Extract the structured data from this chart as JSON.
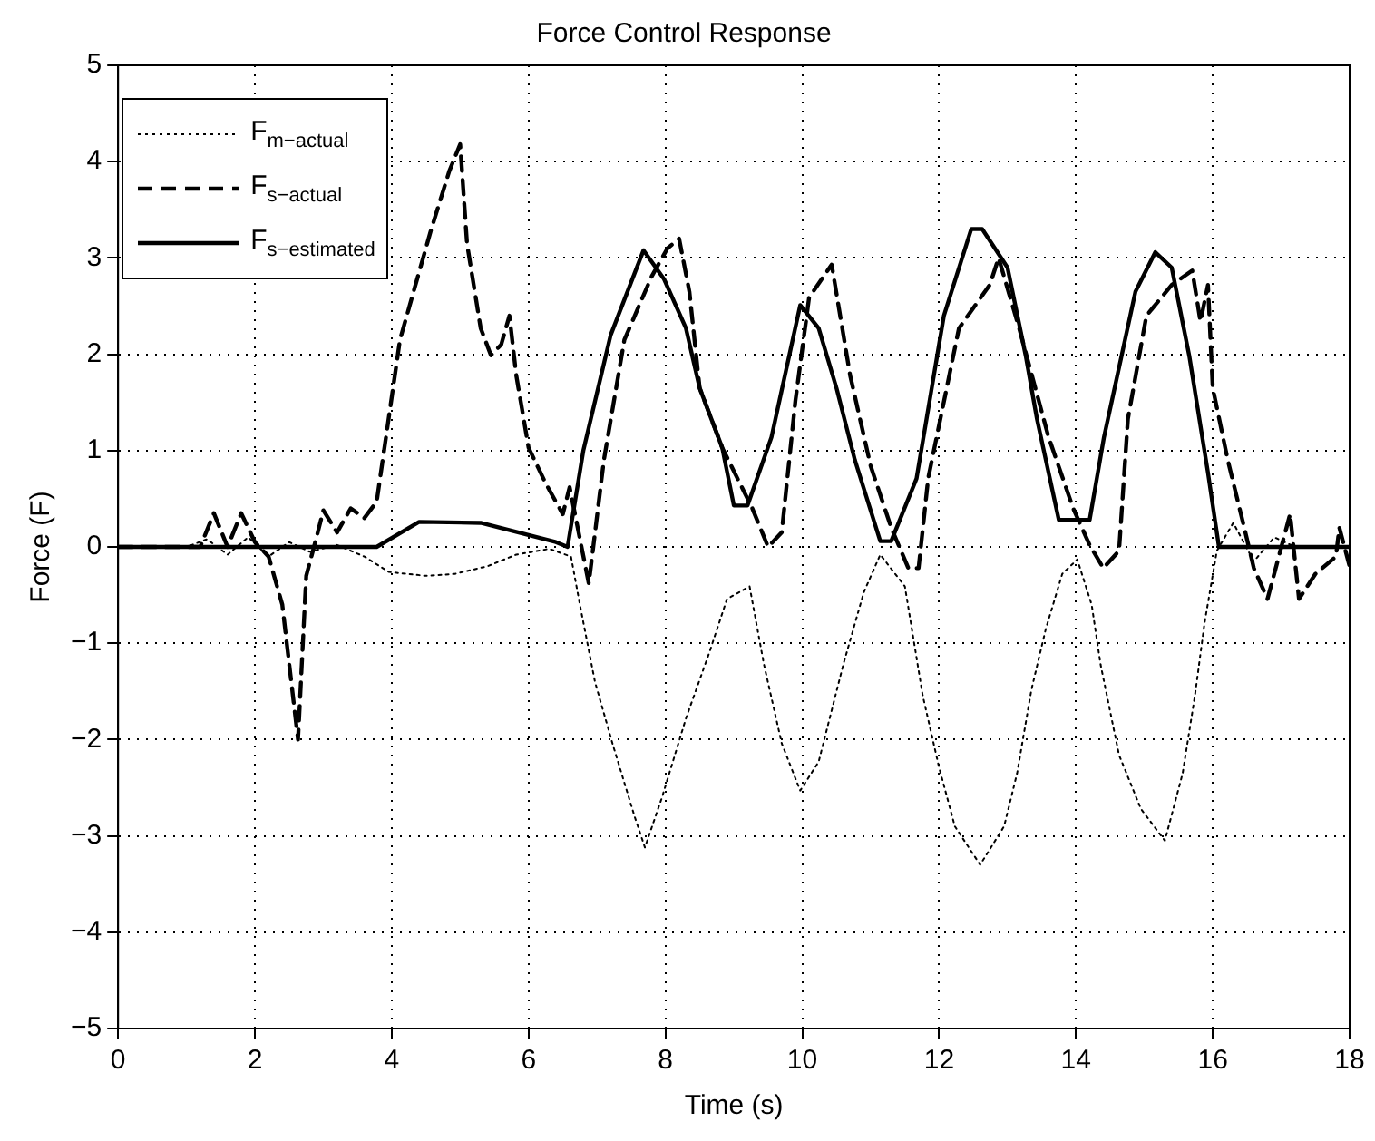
{
  "chart_data": {
    "type": "line",
    "title": "Force Control Response",
    "xlabel": "Time (s)",
    "ylabel": "Force (F)",
    "xlim": [
      0,
      18
    ],
    "xticks": [
      0,
      2,
      4,
      6,
      8,
      10,
      12,
      14,
      16,
      18
    ],
    "ylim": [
      -5,
      5
    ],
    "yticks": [
      -5,
      -4,
      -3,
      -2,
      -1,
      0,
      1,
      2,
      3,
      4,
      5
    ],
    "grid": true,
    "legend": "top left",
    "marker": "none",
    "series": [
      {
        "name": "F$_{m−actual}$",
        "color": "#000000",
        "line_style": "dotted",
        "x": [
          0,
          1.0,
          1.3,
          1.6,
          1.9,
          2.2,
          2.5,
          2.8,
          3.2,
          3.6,
          3.96,
          4.5,
          4.92,
          5.4,
          5.82,
          6.3,
          6.62,
          6.75,
          6.97,
          7.23,
          7.55,
          7.7,
          7.95,
          8.3,
          8.64,
          8.9,
          9.23,
          9.44,
          9.7,
          9.97,
          10.24,
          10.6,
          10.9,
          11.14,
          11.5,
          11.76,
          12.0,
          12.23,
          12.6,
          12.95,
          13.14,
          13.35,
          13.56,
          13.8,
          14.02,
          14.23,
          14.36,
          14.63,
          14.95,
          15.3,
          15.56,
          15.74,
          15.88,
          16.06,
          16.3,
          16.6,
          16.9,
          17.2,
          18
        ],
        "values": [
          0,
          0,
          0.08,
          -0.08,
          0.1,
          -0.1,
          0.05,
          -0.05,
          0.02,
          -0.1,
          -0.26,
          -0.3,
          -0.28,
          -0.2,
          -0.08,
          -0.02,
          -0.1,
          -0.6,
          -1.4,
          -2.05,
          -2.8,
          -3.12,
          -2.6,
          -1.78,
          -1.1,
          -0.54,
          -0.41,
          -1.22,
          -2.04,
          -2.53,
          -2.23,
          -1.22,
          -0.47,
          -0.08,
          -0.41,
          -1.54,
          -2.29,
          -2.9,
          -3.3,
          -2.9,
          -2.35,
          -1.48,
          -0.85,
          -0.28,
          -0.13,
          -0.6,
          -1.22,
          -2.16,
          -2.72,
          -3.05,
          -2.35,
          -1.54,
          -0.79,
          -0.04,
          0.25,
          -0.15,
          0.1,
          0,
          0
        ]
      },
      {
        "name": "F$_{s−actual}$",
        "color": "#000000",
        "line_style": "dashed",
        "x": [
          0,
          1.2,
          1.4,
          1.6,
          1.8,
          2.0,
          2.2,
          2.4,
          2.63,
          2.75,
          2.9,
          3.0,
          3.2,
          3.4,
          3.6,
          3.78,
          4.12,
          4.57,
          4.84,
          5.0,
          5.1,
          5.3,
          5.45,
          5.6,
          5.72,
          5.82,
          6.0,
          6.25,
          6.5,
          6.6,
          6.88,
          7.1,
          7.4,
          7.8,
          8.03,
          8.2,
          8.35,
          8.5,
          8.83,
          9.27,
          9.5,
          9.7,
          9.9,
          10.1,
          10.43,
          10.7,
          11.0,
          11.3,
          11.55,
          11.7,
          11.84,
          12.29,
          12.74,
          12.87,
          13.17,
          13.6,
          13.96,
          14.2,
          14.4,
          14.63,
          14.76,
          15.03,
          15.4,
          15.7,
          15.82,
          15.93,
          16.0,
          16.22,
          16.46,
          16.6,
          16.8,
          17.13,
          17.26,
          17.5,
          17.8,
          17.85,
          18
        ],
        "values": [
          0,
          0,
          0.35,
          0,
          0.35,
          0.05,
          -0.1,
          -0.6,
          -2.0,
          -0.3,
          0.1,
          0.38,
          0.15,
          0.4,
          0.3,
          0.47,
          2.15,
          3.28,
          3.9,
          4.18,
          3.15,
          2.27,
          1.99,
          2.1,
          2.4,
          1.78,
          1.03,
          0.66,
          0.34,
          0.62,
          -0.38,
          0.9,
          2.15,
          2.81,
          3.1,
          3.2,
          2.65,
          1.65,
          1.03,
          0.4,
          0,
          0.15,
          1.52,
          2.59,
          2.93,
          1.78,
          0.84,
          0.2,
          -0.22,
          -0.22,
          0.71,
          2.27,
          2.72,
          3.0,
          2.27,
          1.14,
          0.4,
          0.02,
          -0.22,
          -0.04,
          1.33,
          2.4,
          2.72,
          2.87,
          2.34,
          2.72,
          1.65,
          0.9,
          0.2,
          -0.22,
          -0.54,
          0.34,
          -0.54,
          -0.28,
          -0.1,
          0.2,
          -0.2
        ]
      },
      {
        "name": "F$_{s−estimated}$",
        "color": "#000000",
        "line_style": "solid",
        "x": [
          0,
          3.78,
          4.4,
          5.3,
          6.4,
          6.57,
          6.8,
          7.2,
          7.68,
          7.98,
          8.3,
          8.5,
          8.83,
          9.0,
          9.2,
          9.55,
          9.97,
          10.24,
          10.5,
          10.77,
          11.14,
          11.3,
          11.67,
          12.07,
          12.47,
          12.63,
          13.0,
          13.27,
          13.43,
          13.75,
          14.2,
          14.41,
          14.87,
          15.16,
          15.4,
          15.66,
          15.93,
          16.09,
          18
        ],
        "values": [
          0,
          0,
          0.26,
          0.25,
          0.05,
          0,
          1.0,
          2.2,
          3.08,
          2.78,
          2.27,
          1.65,
          1.03,
          0.43,
          0.43,
          1.14,
          2.51,
          2.27,
          1.65,
          0.9,
          0.06,
          0.06,
          0.71,
          2.4,
          3.3,
          3.3,
          2.9,
          1.97,
          1.33,
          0.28,
          0.28,
          1.14,
          2.65,
          3.06,
          2.9,
          1.97,
          0.77,
          0,
          0
        ]
      }
    ]
  }
}
